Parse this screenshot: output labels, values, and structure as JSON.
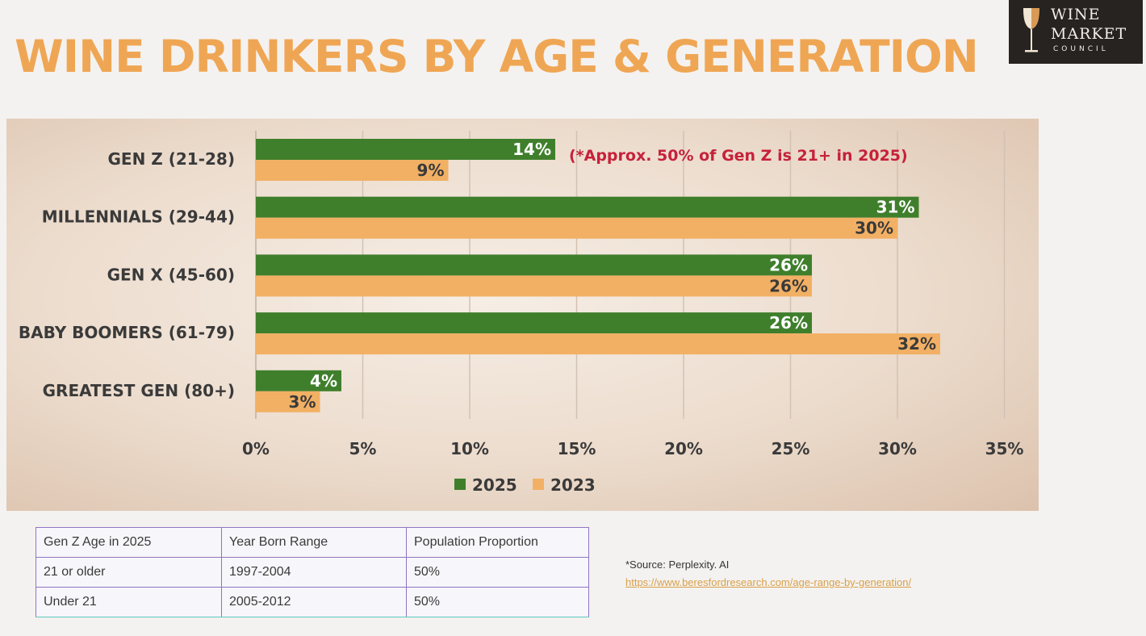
{
  "title": "WINE DRINKERS BY AGE & GENERATION",
  "logo": {
    "line1": "WINE",
    "line2": "MARKET",
    "line3": "COUNCIL"
  },
  "chart_data": {
    "type": "bar",
    "orientation": "horizontal",
    "categories": [
      "GEN Z (21-28)",
      "MILLENNIALS (29-44)",
      "GEN X (45-60)",
      "BABY BOOMERS (61-79)",
      "GREATEST GEN (80+)"
    ],
    "series": [
      {
        "name": "2025",
        "values": [
          14,
          31,
          26,
          26,
          4
        ],
        "labels": [
          "14%",
          "31%",
          "26%",
          "26%",
          "4%"
        ],
        "color": "#3f7f2c"
      },
      {
        "name": "2023",
        "values": [
          9,
          30,
          26,
          32,
          3
        ],
        "labels": [
          "9%",
          "30%",
          "26%",
          "32%",
          "3%"
        ],
        "color": "#f2b064"
      }
    ],
    "xlim": [
      0,
      35
    ],
    "xticks": [
      0,
      5,
      10,
      15,
      20,
      25,
      30,
      35
    ],
    "xtick_labels": [
      "0%",
      "5%",
      "10%",
      "15%",
      "20%",
      "25%",
      "30%",
      "35%"
    ],
    "grid": "vertical",
    "legend": "bottom",
    "annotation": "(*Approx. 50% of Gen Z is  21+ in 2025)"
  },
  "table": {
    "headers": [
      "Gen Z Age in 2025",
      "Year Born Range",
      "Population Proportion"
    ],
    "rows": [
      [
        "21 or older",
        "1997-2004",
        "50%"
      ],
      [
        "Under 21",
        "2005-2012",
        "50%"
      ]
    ]
  },
  "source": {
    "text": "*Source: Perplexity. AI",
    "link": "https://www.beresfordresearch.com/age-range-by-generation/"
  }
}
